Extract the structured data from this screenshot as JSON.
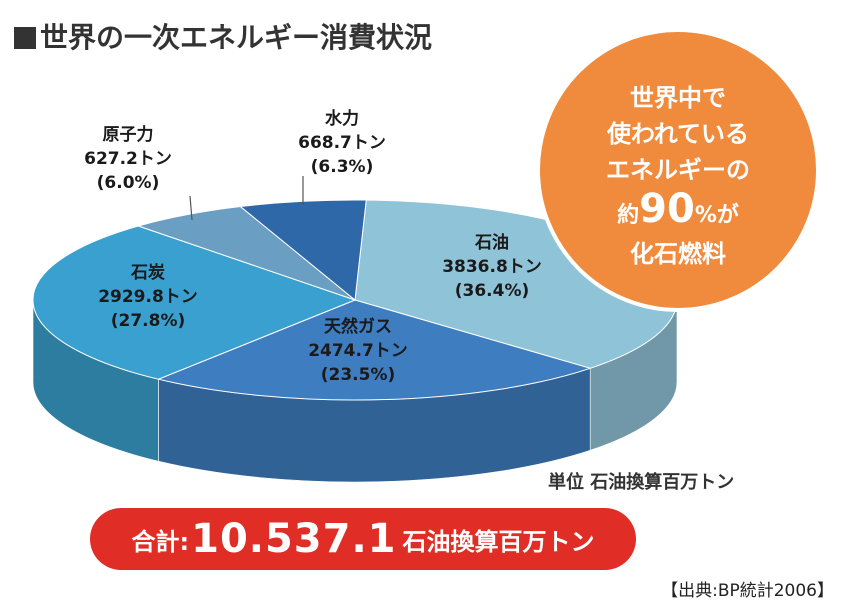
{
  "title": "世界の一次エネルギー消費状況",
  "unit_note": "単位 石油換算百万トン",
  "total": {
    "label": "合計:",
    "value": "10.537.1",
    "unit": "石油換算百万トン"
  },
  "source": "【出典:BP統計2006】",
  "badge": {
    "lines": [
      "世界中で",
      "使われている",
      "エネルギーの"
    ],
    "prefix": "約",
    "big": "90",
    "suffix": "%が",
    "last": "化石燃料",
    "color": "#f08a3c"
  },
  "chart_data": {
    "type": "pie",
    "title": "世界の一次エネルギー消費状況",
    "unit": "石油換算百万トン",
    "slices": [
      {
        "name": "石油",
        "value": 3836.8,
        "value_text": "3836.8トン",
        "percent": 36.4,
        "percent_text": "(36.4%)",
        "color": "#8fc3d8"
      },
      {
        "name": "天然ガス",
        "value": 2474.7,
        "value_text": "2474.7トン",
        "percent": 23.5,
        "percent_text": "(23.5%)",
        "color": "#3d7dc0"
      },
      {
        "name": "石炭",
        "value": 2929.8,
        "value_text": "2929.8トン",
        "percent": 27.8,
        "percent_text": "(27.8%)",
        "color": "#3aa0cf"
      },
      {
        "name": "原子力",
        "value": 627.2,
        "value_text": "627.2トン",
        "percent": 6.0,
        "percent_text": "(6.0%)",
        "color": "#6a9ec3"
      },
      {
        "name": "水力",
        "value": 668.7,
        "value_text": "668.7トン",
        "percent": 6.3,
        "percent_text": "(6.3%)",
        "color": "#2f68a8"
      }
    ]
  }
}
